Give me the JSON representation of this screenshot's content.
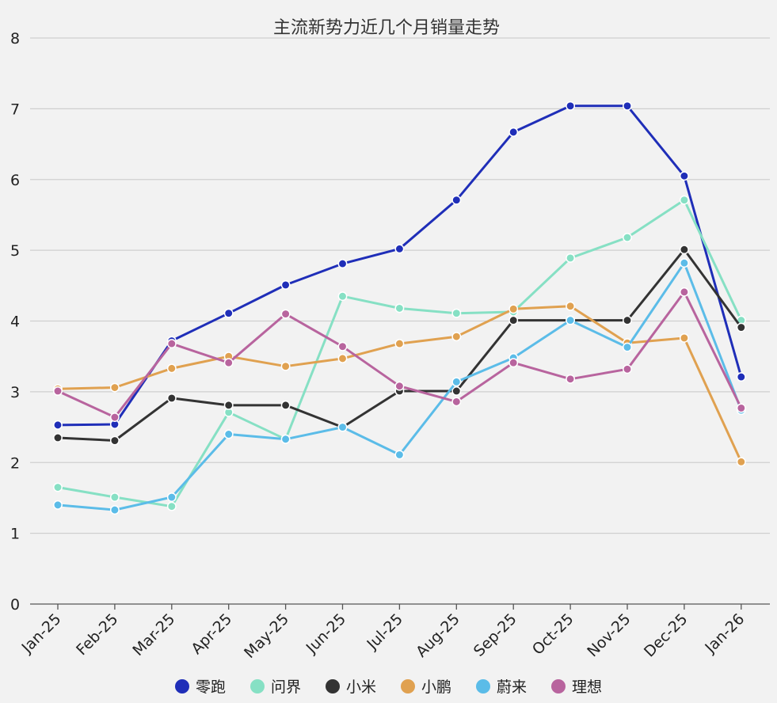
{
  "chart_data": {
    "type": "line",
    "title": "主流新势力近几个月销量走势",
    "xlabel": "",
    "ylabel": "",
    "categories": [
      "Jan-25",
      "Feb-25",
      "Mar-25",
      "Apr-25",
      "May-25",
      "Jun-25",
      "Jul-25",
      "Aug-25",
      "Sep-25",
      "Oct-25",
      "Nov-25",
      "Dec-25",
      "Jan-26"
    ],
    "ylim": [
      0,
      8
    ],
    "yticks": [
      "0",
      "1",
      "2",
      "3",
      "4",
      "5",
      "6",
      "7",
      "8"
    ],
    "grid": true,
    "legend_position": "bottom",
    "series": [
      {
        "name": "零跑",
        "color": "#1f2eb8",
        "values": [
          2.53,
          2.54,
          3.72,
          4.11,
          4.51,
          4.81,
          5.02,
          5.71,
          6.67,
          7.04,
          7.04,
          6.05,
          3.21
        ]
      },
      {
        "name": "问界",
        "color": "#86e0c4",
        "values": [
          1.65,
          1.51,
          1.38,
          2.71,
          2.33,
          4.35,
          4.18,
          4.11,
          4.13,
          4.89,
          5.18,
          5.71,
          4.01
        ]
      },
      {
        "name": "小米",
        "color": "#333333",
        "values": [
          2.35,
          2.31,
          2.91,
          2.81,
          2.81,
          2.5,
          3.01,
          3.01,
          4.01,
          4.01,
          4.01,
          5.01,
          3.91
        ]
      },
      {
        "name": "小鹏",
        "color": "#e0a150",
        "values": [
          3.04,
          3.06,
          3.33,
          3.5,
          3.36,
          3.47,
          3.68,
          3.78,
          4.17,
          4.21,
          3.69,
          3.76,
          2.01
        ]
      },
      {
        "name": "蔚来",
        "color": "#5bbce8",
        "values": [
          1.4,
          1.33,
          1.51,
          2.4,
          2.33,
          2.5,
          2.11,
          3.14,
          3.48,
          4.01,
          3.63,
          4.82,
          2.74
        ]
      },
      {
        "name": "理想",
        "color": "#b8649e",
        "values": [
          3.01,
          2.64,
          3.68,
          3.41,
          4.1,
          3.64,
          3.08,
          2.86,
          3.41,
          3.18,
          3.32,
          4.41,
          2.77
        ]
      }
    ]
  }
}
